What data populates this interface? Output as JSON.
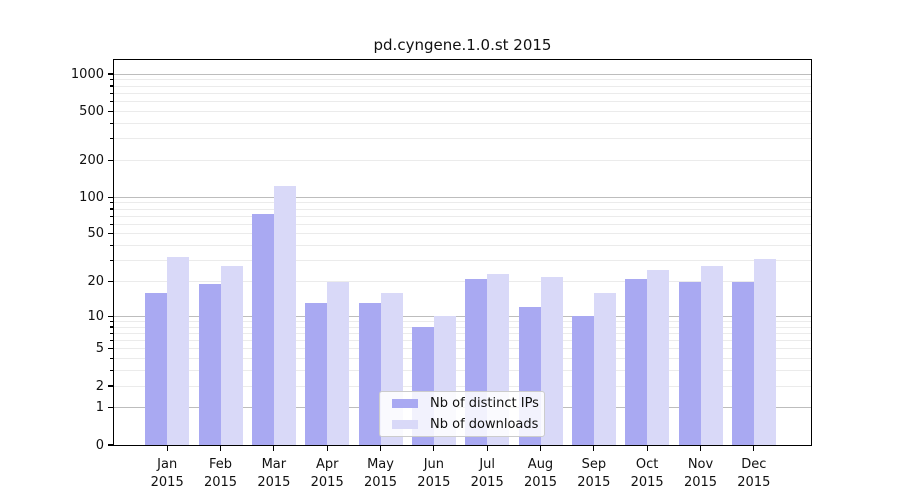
{
  "chart_data": {
    "type": "bar",
    "title": "pd.cyngene.1.0.st 2015",
    "categories": [
      "Jan 2015",
      "Feb 2015",
      "Mar 2015",
      "Apr 2015",
      "May 2015",
      "Jun 2015",
      "Jul 2015",
      "Aug 2015",
      "Sep 2015",
      "Oct 2015",
      "Nov 2015",
      "Dec 2015"
    ],
    "series": [
      {
        "name": "Nb of distinct IPs",
        "color": "#a9a9f2",
        "values": [
          16,
          19,
          73,
          13,
          13,
          8,
          21,
          12,
          10,
          21,
          20,
          20
        ]
      },
      {
        "name": "Nb of downloads",
        "color": "#d9d9f8",
        "values": [
          32,
          27,
          123,
          20,
          16,
          10,
          23,
          22,
          16,
          25,
          27,
          31
        ]
      }
    ],
    "yscale": "log1p",
    "ylim": [
      0,
      1300
    ],
    "yticks": [
      0,
      1,
      2,
      5,
      10,
      20,
      50,
      100,
      200,
      500,
      1000
    ],
    "grid": {
      "on": true,
      "major": [
        1,
        10,
        100,
        1000
      ],
      "minor": [
        2,
        3,
        4,
        5,
        6,
        7,
        8,
        9,
        20,
        30,
        40,
        50,
        60,
        70,
        80,
        90,
        200,
        300,
        400,
        500,
        600,
        700,
        800,
        900
      ]
    },
    "legend_position": "lower center",
    "colors": {
      "grid_major": "#bdbdbd",
      "grid_minor": "#ebebeb",
      "spine": "#000000",
      "text": "#111111"
    }
  }
}
